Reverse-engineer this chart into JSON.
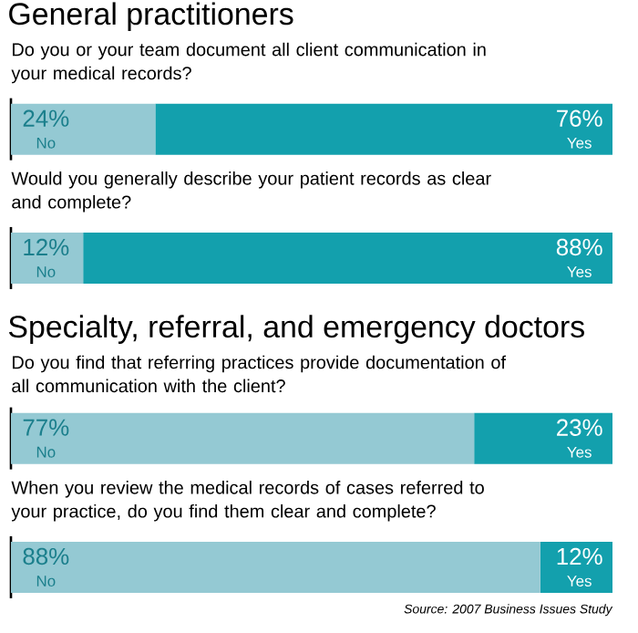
{
  "chart_data": [
    {
      "type": "bar",
      "orientation": "horizontal",
      "stacked": true,
      "title": "General practitioners",
      "subtitle": "Do you or your team document all client communication in your medical records?",
      "categories": [
        null
      ],
      "series": [
        {
          "name": "No",
          "color": "#94c9d3",
          "values": [
            24
          ],
          "value_labels": [
            "24%"
          ]
        },
        {
          "name": "Yes",
          "color": "#13a0ad",
          "values": [
            76
          ],
          "value_labels": [
            "76%"
          ]
        }
      ]
    },
    {
      "type": "bar",
      "orientation": "horizontal",
      "stacked": true,
      "subtitle": "Would you generally describe your patient records as clear and complete?",
      "categories": [
        null
      ],
      "series": [
        {
          "name": "No",
          "color": "#94c9d3",
          "values": [
            12
          ],
          "value_labels": [
            "12%"
          ]
        },
        {
          "name": "Yes",
          "color": "#13a0ad",
          "values": [
            88
          ],
          "value_labels": [
            "88%"
          ]
        }
      ]
    },
    {
      "type": "bar",
      "orientation": "horizontal",
      "stacked": true,
      "title": "Specialty, referral, and emergency doctors",
      "subtitle": "Do you find that referring practices provide documentation of all communication with the client?",
      "categories": [
        null
      ],
      "series": [
        {
          "name": "No",
          "color": "#94c9d3",
          "values": [
            77
          ],
          "value_labels": [
            "77%"
          ]
        },
        {
          "name": "Yes",
          "color": "#13a0ad",
          "values": [
            23
          ],
          "value_labels": [
            "23%"
          ]
        }
      ]
    },
    {
      "type": "bar",
      "orientation": "horizontal",
      "stacked": true,
      "subtitle": "When you review the medical records of cases referred to your practice, do you find them clear and complete?",
      "categories": [
        null
      ],
      "annotations": [
        "Source: 2007 Business Issues Study"
      ],
      "series": [
        {
          "name": "No",
          "color": "#94c9d3",
          "values": [
            88
          ],
          "value_labels": [
            "88%"
          ]
        },
        {
          "name": "Yes",
          "color": "#13a0ad",
          "values": [
            12
          ],
          "value_labels": [
            "12%"
          ]
        }
      ]
    }
  ]
}
